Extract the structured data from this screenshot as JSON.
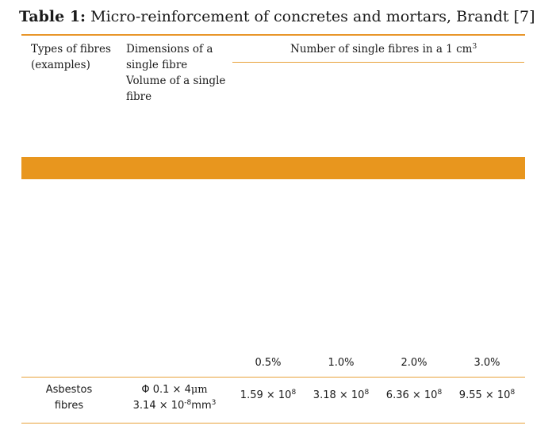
{
  "caption": {
    "number": "Table 1:",
    "title": "Micro-reinforcement of concretes and mortars, Brandt [7]"
  },
  "headers": {
    "col1": [
      "Types of fibres",
      "(examples)"
    ],
    "col2": [
      "Dimensions of a",
      "single fibre",
      "Volume of a single",
      "fibre"
    ],
    "col3": "Number of single fibres in a 1 cm",
    "col3_unit_exp": "3"
  },
  "percentages": [
    "0.5%",
    "1.0%",
    "2.0%",
    "3.0%"
  ],
  "rows": [
    {
      "type": [
        "Asbestos",
        "fibres"
      ],
      "dimension_prefix": "Φ 0.1 × 4",
      "dimension_unit": "μm",
      "volume_base": "3.14 × 10",
      "volume_exp": "-8",
      "volume_unit": "mm",
      "volume_unit_exp": "3",
      "counts": [
        {
          "base": "1.59 × 10",
          "exp": "8"
        },
        {
          "base": "3.18 × 10",
          "exp": "8"
        },
        {
          "base": "6.36 × 10",
          "exp": "8"
        },
        {
          "base": "9.55 × 10",
          "exp": "8"
        }
      ]
    }
  ]
}
